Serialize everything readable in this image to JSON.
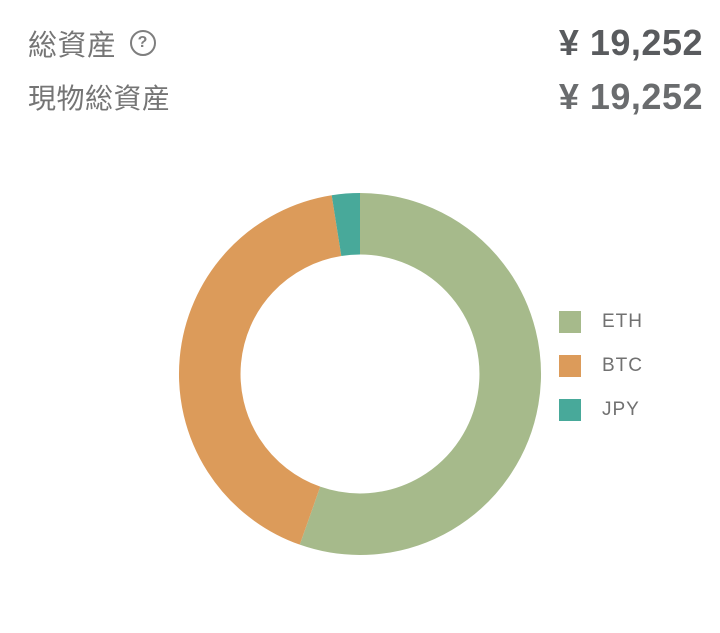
{
  "header": {
    "total_assets": {
      "label": "総資産",
      "help_icon_glyph": "?",
      "value": "¥ 19,252"
    },
    "spot_total_assets": {
      "label": "現物総資産",
      "value": "¥ 19,252"
    }
  },
  "chart_data": {
    "type": "pie",
    "subtype": "donut",
    "title": "",
    "categories": [
      "ETH",
      "BTC",
      "JPY"
    ],
    "values": [
      55.4,
      42.1,
      2.5
    ],
    "unit": "percent-of-total-assets (estimated from arc angles)",
    "colors": [
      "#a6ba8b",
      "#dc9b5a",
      "#48a99a"
    ],
    "start_angle_deg": 0,
    "direction": "clockwise",
    "inner_radius_ratio": 0.66,
    "legend_position": "right"
  },
  "legend": {
    "items": [
      {
        "label": "ETH",
        "color": "#a6ba8b"
      },
      {
        "label": "BTC",
        "color": "#dc9b5a"
      },
      {
        "label": "JPY",
        "color": "#48a99a"
      }
    ]
  },
  "colors": {
    "background": "#ffffff",
    "label_text": "#757575",
    "value_text": "#595b5e",
    "legend_text": "#717171",
    "eth_green": "#a6ba8b",
    "btc_orange": "#dc9b5a",
    "jpy_teal": "#48a99a"
  }
}
